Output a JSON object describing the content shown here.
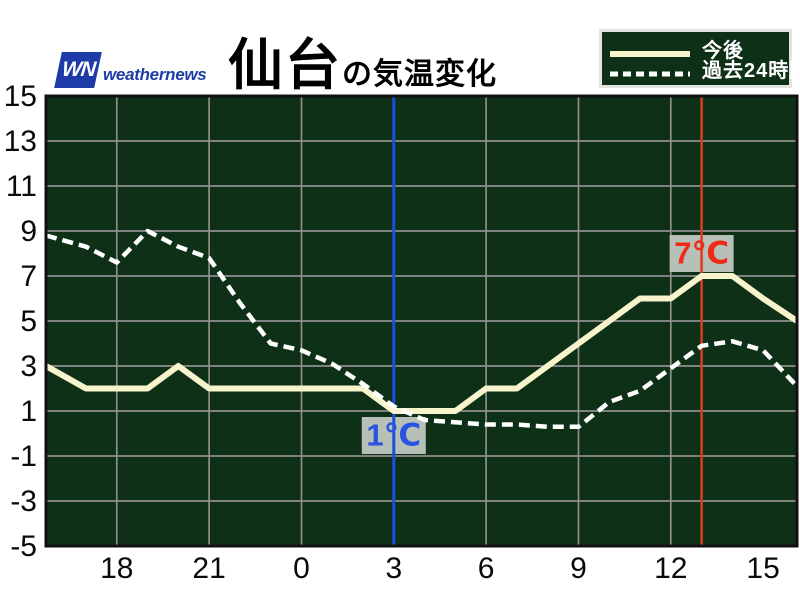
{
  "header": {
    "logo": {
      "mark": "WN",
      "text": "weathernews"
    },
    "title": {
      "city": "仙台",
      "suffix": "の気温変化"
    }
  },
  "legend": {
    "items": [
      {
        "label": "今後",
        "style": "solid"
      },
      {
        "label": "過去24時間",
        "style": "dashed"
      }
    ]
  },
  "chart_data": {
    "type": "line",
    "title": "仙台の気温変化",
    "plot_bg": "#0d3017",
    "grid_color": "#8f8f8f",
    "border_color": "#111111",
    "axis_text_color": "#0a0a0a",
    "x_axis": {
      "unit": "hour",
      "start_hour": 16,
      "xlim": [
        15.7,
        40.1
      ],
      "tick_hours": [
        18,
        21,
        24,
        27,
        30,
        33,
        36,
        39
      ],
      "tick_labels": [
        "18",
        "21",
        "0",
        "3",
        "6",
        "9",
        "12",
        "15"
      ],
      "gridline_hours": [
        18,
        21,
        24,
        30,
        33,
        36
      ]
    },
    "y_axis": {
      "ylim": [
        -5,
        15
      ],
      "tick_values": [
        15,
        13,
        11,
        9,
        7,
        5,
        3,
        1,
        -1,
        -3,
        -5
      ]
    },
    "series": [
      {
        "name": "今後",
        "style": "solid",
        "color": "#f7f3cc",
        "width": 6,
        "values": [
          3,
          2,
          2,
          2,
          3,
          2,
          2,
          2,
          2,
          2,
          2,
          1,
          1,
          1,
          2,
          2,
          3,
          4,
          5,
          6,
          6,
          7,
          7,
          6,
          5
        ]
      },
      {
        "name": "過去24時間",
        "style": "dashed",
        "color": "#ffffff",
        "width": 4.5,
        "values": [
          8.8,
          8.3,
          7.6,
          9.0,
          8.3,
          7.8,
          5.8,
          4.0,
          3.7,
          3.1,
          2.2,
          1.2,
          0.6,
          0.5,
          0.4,
          0.4,
          0.3,
          0.3,
          1.4,
          1.9,
          2.9,
          3.9,
          4.1,
          3.7,
          2.1
        ]
      }
    ],
    "annotations": [
      {
        "hour": 27,
        "value": 1,
        "label": "1℃",
        "side": "below",
        "line_color": "#1b4fe1",
        "line_width": 3,
        "text_color": "#2953e0",
        "box_color": "#b6c0b6"
      },
      {
        "hour": 37,
        "value": 7,
        "label": "7℃",
        "side": "above",
        "line_color": "#e23a20",
        "line_width": 2.5,
        "text_color": "#f02b15",
        "box_color": "#b6c0b6"
      }
    ]
  }
}
